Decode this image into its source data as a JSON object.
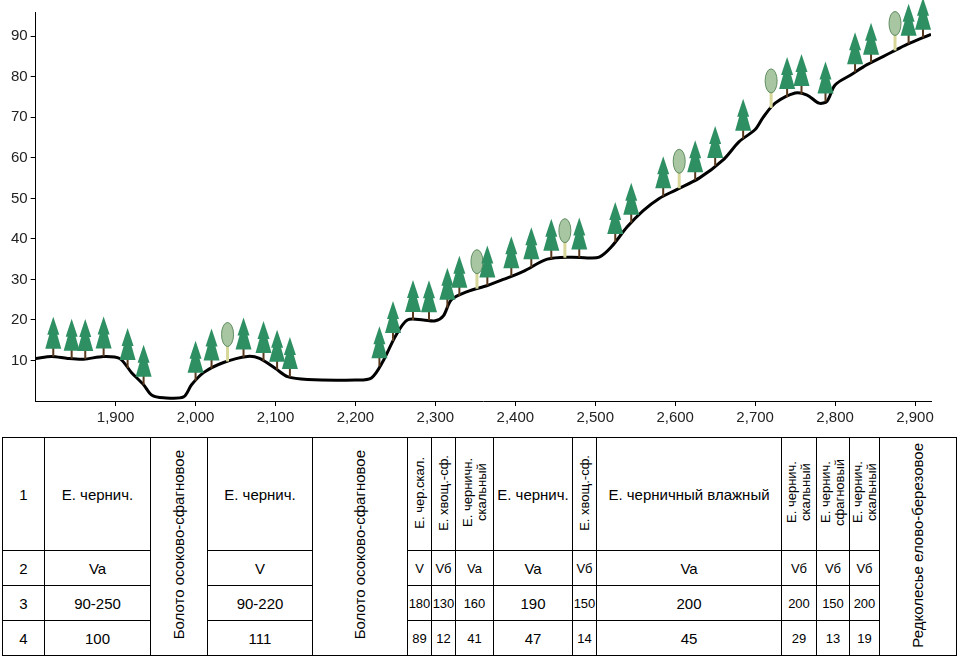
{
  "chart_data": {
    "type": "line",
    "color": "#000000",
    "grid": false,
    "x": [
      1800,
      1820,
      1840,
      1860,
      1885,
      1905,
      1920,
      1935,
      1945,
      1960,
      1985,
      1995,
      2010,
      2035,
      2065,
      2080,
      2100,
      2115,
      2140,
      2200,
      2220,
      2235,
      2250,
      2265,
      2285,
      2300,
      2310,
      2320,
      2340,
      2365,
      2385,
      2410,
      2440,
      2470,
      2490,
      2505,
      2520,
      2540,
      2560,
      2580,
      2600,
      2630,
      2660,
      2680,
      2700,
      2710,
      2725,
      2750,
      2765,
      2780,
      2790,
      2800,
      2820,
      2840,
      2870,
      2890,
      2920
    ],
    "values": [
      10.5,
      11,
      10.5,
      10.3,
      11,
      10.5,
      7,
      4,
      1.5,
      0.8,
      1,
      4,
      7,
      9.5,
      11,
      10.5,
      8,
      6,
      5.3,
      5.2,
      5.7,
      10,
      16,
      20,
      20,
      19.8,
      21,
      25,
      27,
      28.5,
      30,
      32,
      35,
      35.5,
      35.3,
      35.5,
      38,
      43,
      47,
      50,
      52,
      55,
      59.5,
      64,
      67,
      70,
      73.5,
      76,
      75.5,
      73.5,
      74,
      78,
      80.5,
      83,
      86,
      88,
      90.5
    ],
    "xlim": [
      1800,
      2920
    ],
    "xticks": [
      1900,
      2000,
      2100,
      2200,
      2300,
      2400,
      2500,
      2600,
      2700,
      2800,
      2900
    ],
    "ylim": [
      0,
      96
    ],
    "yticks": [
      10,
      20,
      30,
      40,
      50,
      60,
      70,
      80,
      90
    ]
  },
  "trees": [
    {
      "x": 1822,
      "kind": "spruce"
    },
    {
      "x": 1845,
      "kind": "spruce"
    },
    {
      "x": 1862,
      "kind": "spruce"
    },
    {
      "x": 1885,
      "kind": "spruce"
    },
    {
      "x": 1915,
      "kind": "spruce"
    },
    {
      "x": 1935,
      "kind": "spruce"
    },
    {
      "x": 2000,
      "kind": "spruce"
    },
    {
      "x": 2020,
      "kind": "spruce"
    },
    {
      "x": 2040,
      "kind": "birch"
    },
    {
      "x": 2060,
      "kind": "spruce"
    },
    {
      "x": 2085,
      "kind": "spruce"
    },
    {
      "x": 2102,
      "kind": "spruce"
    },
    {
      "x": 2118,
      "kind": "spruce"
    },
    {
      "x": 2230,
      "kind": "spruce"
    },
    {
      "x": 2247,
      "kind": "spruce"
    },
    {
      "x": 2272,
      "kind": "spruce"
    },
    {
      "x": 2292,
      "kind": "spruce"
    },
    {
      "x": 2315,
      "kind": "spruce"
    },
    {
      "x": 2330,
      "kind": "spruce"
    },
    {
      "x": 2352,
      "kind": "birch"
    },
    {
      "x": 2365,
      "kind": "spruce"
    },
    {
      "x": 2395,
      "kind": "spruce"
    },
    {
      "x": 2420,
      "kind": "spruce"
    },
    {
      "x": 2445,
      "kind": "spruce"
    },
    {
      "x": 2462,
      "kind": "birch"
    },
    {
      "x": 2480,
      "kind": "spruce"
    },
    {
      "x": 2525,
      "kind": "spruce"
    },
    {
      "x": 2545,
      "kind": "spruce"
    },
    {
      "x": 2585,
      "kind": "spruce"
    },
    {
      "x": 2605,
      "kind": "birch"
    },
    {
      "x": 2625,
      "kind": "spruce"
    },
    {
      "x": 2650,
      "kind": "spruce"
    },
    {
      "x": 2685,
      "kind": "spruce"
    },
    {
      "x": 2720,
      "kind": "birch"
    },
    {
      "x": 2740,
      "kind": "spruce"
    },
    {
      "x": 2758,
      "kind": "spruce"
    },
    {
      "x": 2788,
      "kind": "spruce"
    },
    {
      "x": 2825,
      "kind": "spruce"
    },
    {
      "x": 2845,
      "kind": "spruce"
    },
    {
      "x": 2875,
      "kind": "birch"
    },
    {
      "x": 2892,
      "kind": "spruce"
    },
    {
      "x": 2910,
      "kind": "spruce"
    }
  ],
  "table": {
    "row_numbers": [
      1,
      2,
      3,
      4
    ],
    "columns": [
      {
        "cells": [
          "Е. чернич.",
          "Va",
          "90-250",
          100
        ]
      },
      {
        "merged": "Болото осоково-сфагновое"
      },
      {
        "cells": [
          "Е. чернич.",
          "V",
          "90-220",
          111
        ]
      },
      {
        "merged": "Болото осоково-сфагновое"
      },
      {
        "cells": [
          "Е. чер.скал.",
          "V",
          180,
          89
        ]
      },
      {
        "cells": [
          "Е. хвощ.-сф.",
          "Vб",
          130,
          12
        ]
      },
      {
        "cells": [
          "Е. черничн. скальный",
          "Va",
          160,
          41
        ]
      },
      {
        "cells": [
          "Е. чернич.",
          "Va",
          190,
          47
        ]
      },
      {
        "cells": [
          "Е. хвощ.-сф.",
          "Vб",
          150,
          14
        ]
      },
      {
        "cells": [
          "Е. черничный влажный",
          "Va",
          200,
          45
        ]
      },
      {
        "cells": [
          "Е. чернич. скальный",
          "Vб",
          200,
          29
        ]
      },
      {
        "cells": [
          "Е. чернич. сфагновый",
          "Vб",
          150,
          13
        ]
      },
      {
        "cells": [
          "Е. чернич. скальный",
          "Vб",
          200,
          19
        ]
      },
      {
        "merged": "Редколесье елово-березовое"
      }
    ]
  }
}
